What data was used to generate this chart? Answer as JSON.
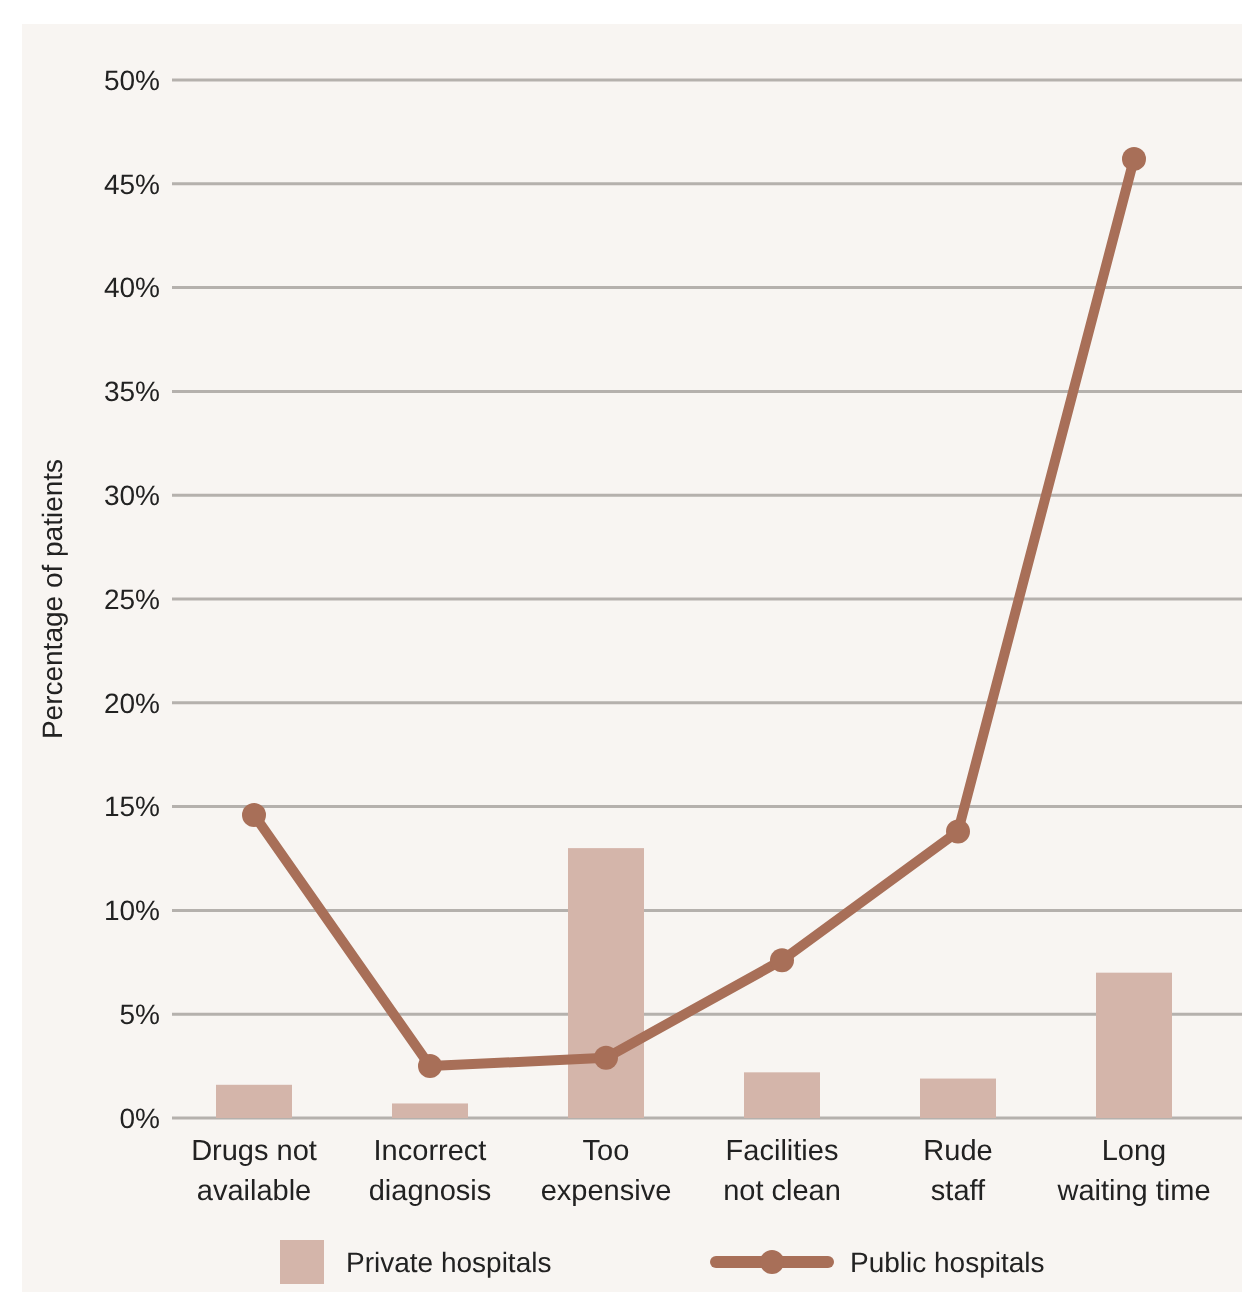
{
  "chart_data": {
    "type": "bar",
    "categories": [
      "Drugs not\navailable",
      "Incorrect\ndiagnosis",
      "Too\nexpensive",
      "Facilities\nnot clean",
      "Rude\nstaff",
      "Long\nwaiting time"
    ],
    "series": [
      {
        "name": "Private hospitals",
        "color": "#d4b5aa",
        "values": [
          1.6,
          0.7,
          13.0,
          2.2,
          1.9,
          7.0
        ]
      },
      {
        "name": "Public hospitals",
        "type": "line",
        "color": "#a86f58",
        "values": [
          14.6,
          2.5,
          2.9,
          7.6,
          13.8,
          46.2
        ]
      }
    ],
    "ylabel": "Percentage of patients",
    "ylim": [
      0,
      50
    ],
    "yticks": [
      {
        "value": 0,
        "label": "0%"
      },
      {
        "value": 5,
        "label": "5%"
      },
      {
        "value": 10,
        "label": "10%"
      },
      {
        "value": 15,
        "label": "15%"
      },
      {
        "value": 20,
        "label": "20%"
      },
      {
        "value": 25,
        "label": "25%"
      },
      {
        "value": 30,
        "label": "30%"
      },
      {
        "value": 35,
        "label": "35%"
      },
      {
        "value": 40,
        "label": "40%"
      },
      {
        "value": 45,
        "label": "45%"
      },
      {
        "value": 50,
        "label": "50%"
      }
    ],
    "grid": "y",
    "legend": "bottom",
    "marker": "circle",
    "line_style": "solid"
  }
}
